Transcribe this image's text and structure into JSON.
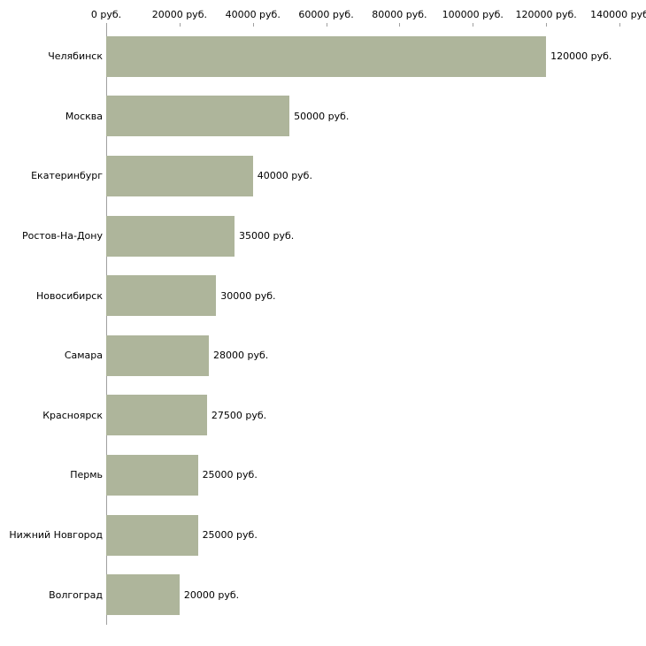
{
  "chart_data": {
    "type": "bar",
    "orientation": "horizontal",
    "title": "",
    "xlabel": "",
    "ylabel": "",
    "categories": [
      "Челябинск",
      "Москва",
      "Екатеринбург",
      "Ростов-На-Дону",
      "Новосибирск",
      "Самара",
      "Красноярск",
      "Пермь",
      "Нижний Новгород",
      "Волгоград"
    ],
    "values": [
      120000,
      50000,
      40000,
      35000,
      30000,
      28000,
      27500,
      25000,
      25000,
      20000
    ],
    "value_labels": [
      "120000 руб.",
      "50000 руб.",
      "40000 руб.",
      "35000 руб.",
      "30000 руб.",
      "28000 руб.",
      "27500 руб.",
      "25000 руб.",
      "25000 руб.",
      "20000 руб."
    ],
    "x_ticks": [
      0,
      20000,
      40000,
      60000,
      80000,
      100000,
      120000,
      140000
    ],
    "x_tick_labels": [
      "0 руб.",
      "20000 руб.",
      "40000 руб.",
      "60000 руб.",
      "80000 руб.",
      "100000 руб.",
      "120000 руб.",
      "140000 руб"
    ],
    "xlim": [
      0,
      140000
    ],
    "grid": false,
    "legend": "none",
    "bar_color": "#aeb59b",
    "axis_color": "#a0a0a0",
    "text_color": "#000000",
    "background_color": "#ffffff"
  },
  "layout_note": "salary-by-city horizontal bar chart"
}
